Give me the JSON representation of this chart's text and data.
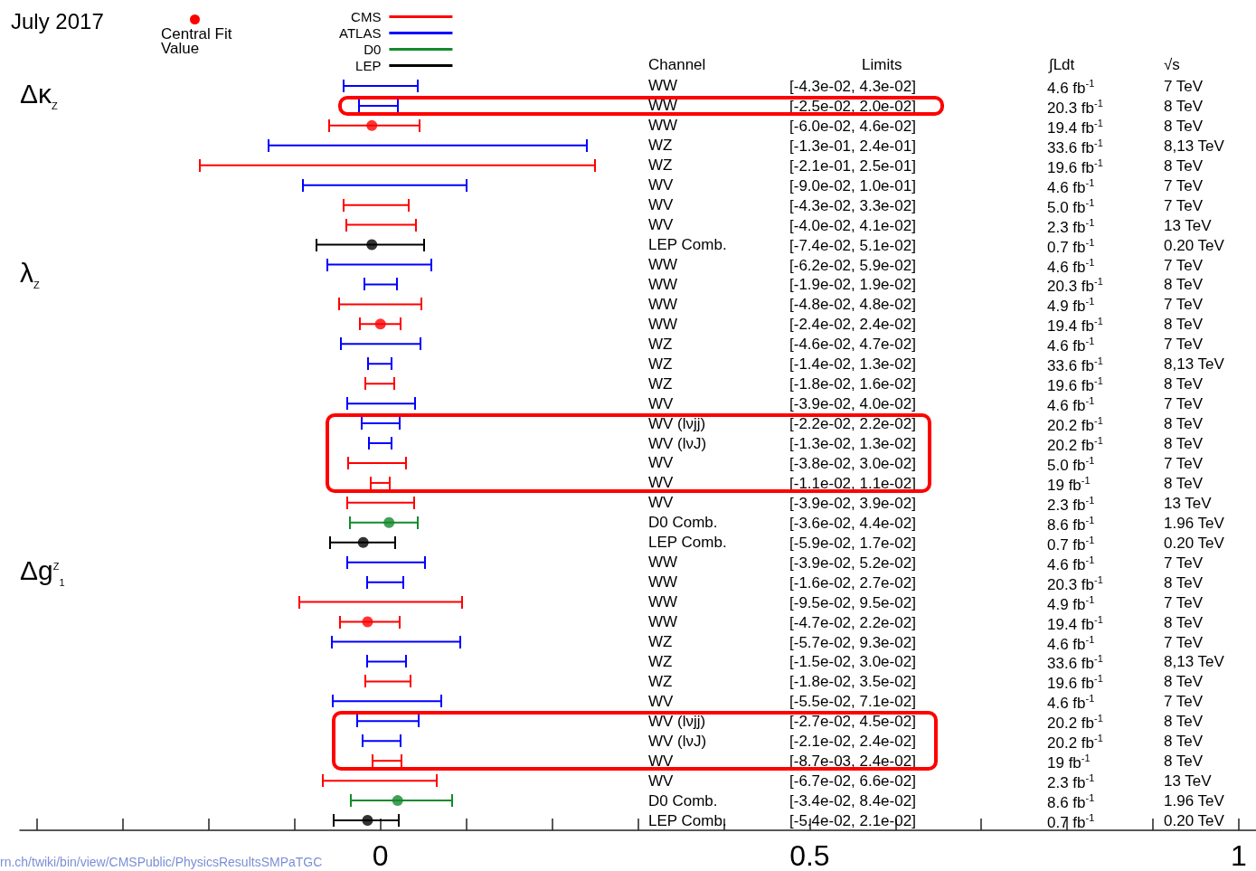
{
  "chart_data": {
    "type": "bar",
    "orientation": "horizontal",
    "legend": "top left",
    "marker": "circle",
    "categories": [
      "WW",
      "WW",
      "WW",
      "WZ",
      "WZ",
      "WV",
      "WV",
      "WV",
      "LEP Comb.",
      "WW",
      "WW",
      "WW",
      "WW",
      "WZ",
      "WZ",
      "WZ",
      "WV",
      "WV (lνjj)",
      "WV (lνJ)",
      "WV",
      "WV",
      "WV",
      "D0 Comb.",
      "LEP Comb.",
      "WW",
      "WW",
      "WW",
      "WW",
      "WZ",
      "WZ",
      "WZ",
      "WV",
      "WV (lνjj)",
      "WV (lνJ)",
      "WV",
      "WV",
      "D0 Comb.",
      "LEP Comb."
    ],
    "series": [
      {
        "name": "CMS",
        "color": "#ff0000",
        "base": [
          null,
          null,
          -0.06,
          null,
          -0.21,
          null,
          -0.043,
          -0.04,
          null,
          null,
          null,
          -0.048,
          -0.024,
          null,
          null,
          -0.018,
          null,
          null,
          null,
          -0.038,
          -0.011,
          -0.039,
          null,
          null,
          null,
          null,
          -0.095,
          -0.047,
          null,
          null,
          -0.018,
          null,
          null,
          null,
          -0.0087,
          -0.067,
          null,
          null
        ],
        "values": [
          null,
          null,
          0.106,
          null,
          0.46,
          null,
          0.076,
          0.081,
          null,
          null,
          null,
          0.096,
          0.048,
          null,
          null,
          0.034,
          null,
          null,
          null,
          0.068,
          0.022,
          0.078,
          null,
          null,
          null,
          null,
          0.19,
          0.069,
          null,
          null,
          0.053,
          null,
          null,
          null,
          0.033,
          0.133,
          null,
          null
        ]
      },
      {
        "name": "ATLAS",
        "color": "#0000ff",
        "base": [
          -0.043,
          -0.025,
          null,
          -0.13,
          null,
          -0.09,
          null,
          null,
          null,
          -0.062,
          -0.019,
          null,
          null,
          -0.046,
          -0.014,
          null,
          -0.039,
          -0.022,
          -0.013,
          null,
          null,
          null,
          null,
          null,
          -0.039,
          -0.016,
          null,
          null,
          -0.057,
          -0.015,
          null,
          -0.055,
          -0.027,
          -0.021,
          null,
          null,
          null,
          null
        ],
        "values": [
          0.086,
          0.045,
          null,
          0.37,
          null,
          0.19,
          null,
          null,
          null,
          0.121,
          0.038,
          null,
          null,
          0.093,
          0.027,
          null,
          0.079,
          0.044,
          0.026,
          null,
          null,
          null,
          null,
          null,
          0.091,
          0.043,
          null,
          null,
          0.15,
          0.045,
          null,
          0.126,
          0.072,
          0.045,
          null,
          null,
          null,
          null
        ]
      },
      {
        "name": "D0",
        "color": "#138a2c",
        "base": [
          null,
          null,
          null,
          null,
          null,
          null,
          null,
          null,
          null,
          null,
          null,
          null,
          null,
          null,
          null,
          null,
          null,
          null,
          null,
          null,
          null,
          null,
          -0.036,
          null,
          null,
          null,
          null,
          null,
          null,
          null,
          null,
          null,
          null,
          null,
          null,
          null,
          -0.034,
          null
        ],
        "values": [
          null,
          null,
          null,
          null,
          null,
          null,
          null,
          null,
          null,
          null,
          null,
          null,
          null,
          null,
          null,
          null,
          null,
          null,
          null,
          null,
          null,
          null,
          0.08,
          null,
          null,
          null,
          null,
          null,
          null,
          null,
          null,
          null,
          null,
          null,
          null,
          null,
          0.118,
          null
        ]
      },
      {
        "name": "LEP",
        "color": "#000000",
        "base": [
          null,
          null,
          null,
          null,
          null,
          null,
          null,
          null,
          -0.074,
          null,
          null,
          null,
          null,
          null,
          null,
          null,
          null,
          null,
          null,
          null,
          null,
          null,
          null,
          -0.059,
          null,
          null,
          null,
          null,
          null,
          null,
          null,
          null,
          null,
          null,
          null,
          null,
          null,
          -0.054
        ],
        "values": [
          null,
          null,
          null,
          null,
          null,
          null,
          null,
          null,
          0.125,
          null,
          null,
          null,
          null,
          null,
          null,
          null,
          null,
          null,
          null,
          null,
          null,
          null,
          null,
          0.076,
          null,
          null,
          null,
          null,
          null,
          null,
          null,
          null,
          null,
          null,
          null,
          null,
          null,
          0.075
        ]
      },
      {
        "type": "scatter",
        "color": "#ff0000",
        "values": [
          null,
          null,
          -0.01,
          null,
          null,
          null,
          null,
          null,
          -0.01,
          null,
          null,
          null,
          0,
          null,
          null,
          null,
          null,
          null,
          null,
          null,
          null,
          null,
          0.01,
          -0.02,
          null,
          null,
          null,
          -0.015,
          null,
          null,
          null,
          null,
          null,
          null,
          null,
          null,
          0.02,
          -0.015
        ],
        "colors": [
          null,
          null,
          "#ff0000",
          null,
          null,
          null,
          null,
          null,
          "#000000",
          null,
          null,
          null,
          "#ff0000",
          null,
          null,
          null,
          null,
          null,
          null,
          null,
          null,
          null,
          "#138a2c",
          "#000000",
          null,
          null,
          null,
          "#ff0000",
          null,
          null,
          null,
          null,
          null,
          null,
          null,
          null,
          "#138a2c",
          "#000000"
        ]
      }
    ],
    "xlim": [
      -0.42,
      1.02
    ],
    "xticks": [
      {
        "value": -0.4,
        "label": null
      },
      {
        "value": -0.3,
        "label": null
      },
      {
        "value": -0.2,
        "label": null
      },
      {
        "value": -0.1,
        "label": null
      },
      0,
      {
        "value": 0.1,
        "label": null
      },
      {
        "value": 0.2,
        "label": null
      },
      {
        "value": 0.3,
        "label": null
      },
      {
        "value": 0.4,
        "label": null
      },
      0.5,
      {
        "value": 0.6,
        "label": null
      },
      {
        "value": 0.7,
        "label": null
      },
      {
        "value": 0.8,
        "label": null
      },
      {
        "value": 0.9,
        "label": null
      },
      1
    ],
    "annotations": [
      "July 2017",
      "Channel",
      "Limits",
      "∫Ldt",
      "√s",
      "Δκ$_{Z}$",
      "λ$_{Z}$",
      "Δg$^{Z}$$_{1}$",
      "[-4.3e-02, 4.3e-02]",
      "[-2.5e-02, 2.0e-02]",
      "[-6.0e-02, 4.6e-02]",
      "[-1.3e-01, 2.4e-01]",
      "[-2.1e-01, 2.5e-01]",
      "[-9.0e-02, 1.0e-01]",
      "[-4.3e-02, 3.3e-02]",
      "[-4.0e-02, 4.1e-02]",
      "[-7.4e-02, 5.1e-02]",
      "[-6.2e-02, 5.9e-02]",
      "[-1.9e-02, 1.9e-02]",
      "[-4.8e-02, 4.8e-02]",
      "[-2.4e-02, 2.4e-02]",
      "[-4.6e-02, 4.7e-02]",
      "[-1.4e-02, 1.3e-02]",
      "[-1.8e-02, 1.6e-02]",
      "[-3.9e-02, 4.0e-02]",
      "[-2.2e-02, 2.2e-02]",
      "[-1.3e-02, 1.3e-02]",
      "[-3.8e-02, 3.0e-02]",
      "[-1.1e-02, 1.1e-02]",
      "[-3.9e-02, 3.9e-02]",
      "[-3.6e-02, 4.4e-02]",
      "[-5.9e-02, 1.7e-02]",
      "[-3.9e-02, 5.2e-02]",
      "[-1.6e-02, 2.7e-02]",
      "[-9.5e-02, 9.5e-02]",
      "[-4.7e-02, 2.2e-02]",
      "[-5.7e-02, 9.3e-02]",
      "[-1.5e-02, 3.0e-02]",
      "[-1.8e-02, 3.5e-02]",
      "[-5.5e-02, 7.1e-02]",
      "[-2.7e-02, 4.5e-02]",
      "[-2.1e-02, 2.4e-02]",
      "[-8.7e-03, 2.4e-02]",
      "[-6.7e-02, 6.6e-02]",
      "[-3.4e-02, 8.4e-02]",
      "[-5.4e-02, 2.1e-02]",
      "4.6 fb$^{-1}$",
      "20.3 fb$^{-1}$",
      "19.4 fb$^{-1}$",
      "33.6 fb$^{-1}$",
      "19.6 fb$^{-1}$",
      "4.6 fb$^{-1}$",
      "5.0 fb$^{-1}$",
      "2.3 fb$^{-1}$",
      "0.7 fb$^{-1}$",
      "4.6 fb$^{-1}$",
      "20.3 fb$^{-1}$",
      "4.9 fb$^{-1}$",
      "19.4 fb$^{-1}$",
      "4.6 fb$^{-1}$",
      "33.6 fb$^{-1}$",
      "19.6 fb$^{-1}$",
      "4.6 fb$^{-1}$",
      "20.2 fb$^{-1}$",
      "20.2 fb$^{-1}$",
      "5.0 fb$^{-1}$",
      "19 fb$^{-1}$",
      "2.3 fb$^{-1}$",
      "8.6 fb$^{-1}$",
      "0.7 fb$^{-1}$",
      "4.6 fb$^{-1}$",
      "20.3 fb$^{-1}$",
      "4.9 fb$^{-1}$",
      "19.4 fb$^{-1}$",
      "4.6 fb$^{-1}$",
      "33.6 fb$^{-1}$",
      "19.6 fb$^{-1}$",
      "4.6 fb$^{-1}$",
      "20.2 fb$^{-1}$",
      "20.2 fb$^{-1}$",
      "19 fb$^{-1}$",
      "2.3 fb$^{-1}$",
      "8.6 fb$^{-1}$",
      "0.7 fb$^{-1}$",
      "7 TeV",
      "8 TeV",
      "8 TeV",
      "8,13 TeV",
      "8 TeV",
      "7 TeV",
      "7 TeV",
      "13 TeV",
      "0.20 TeV",
      "7 TeV",
      "8 TeV",
      "7 TeV",
      "8 TeV",
      "7 TeV",
      "8,13 TeV",
      "8 TeV",
      "7 TeV",
      "8 TeV",
      "8 TeV",
      "7 TeV",
      "8 TeV",
      "13 TeV",
      "1.96 TeV",
      "0.20 TeV",
      "7 TeV",
      "8 TeV",
      "7 TeV",
      "8 TeV",
      "7 TeV",
      "8,13 TeV",
      "8 TeV",
      "7 TeV",
      "8 TeV",
      "8 TeV",
      "8 TeV",
      "13 TeV",
      "1.96 TeV",
      "0.20 TeV",
      "rn.ch/twiki/bin/view/CMSPublic/PhysicsResultsSMPaTGC",
      "Central Fit Value"
    ]
  }
}
